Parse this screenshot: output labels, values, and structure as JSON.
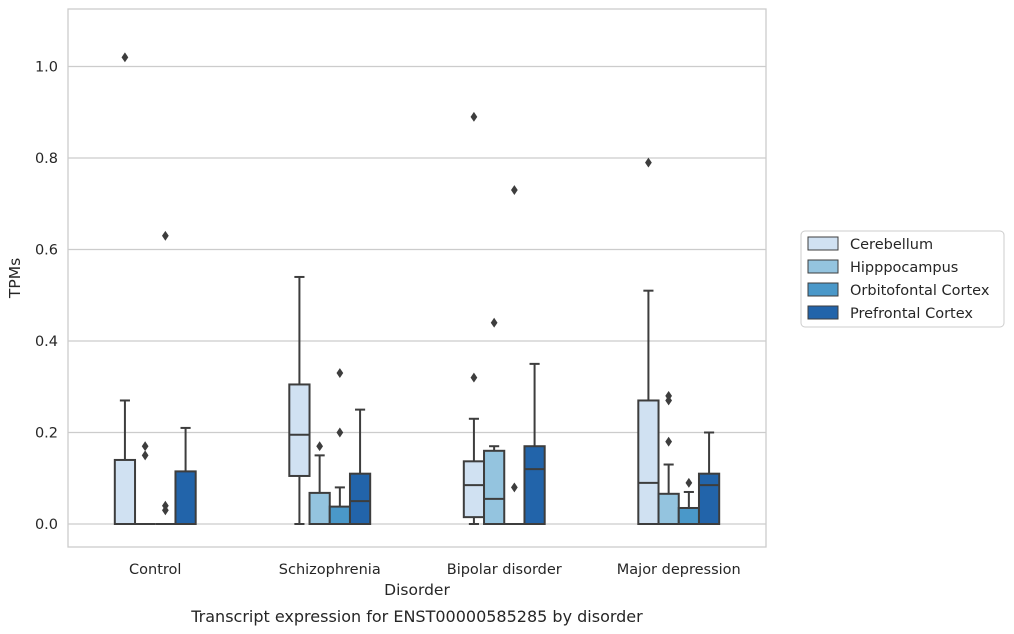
{
  "chart_data": {
    "type": "box",
    "title": "",
    "caption": "Transcript expression for ENST00000585285 by disorder",
    "xlabel": "Disorder",
    "ylabel": "TPMs",
    "ylim": [
      -0.05,
      1.13
    ],
    "yticks": [
      0.0,
      0.2,
      0.4,
      0.6,
      0.8,
      1.0
    ],
    "ytick_labels": [
      "0.0",
      "0.2",
      "0.4",
      "0.6",
      "0.8",
      "1.0"
    ],
    "grid": "horizontal",
    "legend_position": "right",
    "categories": [
      "Control",
      "Schizophrenia",
      "Bipolar disorder",
      "Major depression"
    ],
    "series": [
      {
        "name": "Cerebellum",
        "color": "#d0e1f2",
        "boxes": [
          {
            "min": 0.0,
            "q1": 0.0,
            "median": 0.0,
            "q3": 0.14,
            "max": 0.27,
            "outliers": [
              1.02
            ]
          },
          {
            "min": 0.0,
            "q1": 0.105,
            "median": 0.195,
            "q3": 0.305,
            "max": 0.54,
            "outliers": []
          },
          {
            "min": 0.0,
            "q1": 0.015,
            "median": 0.085,
            "q3": 0.137,
            "max": 0.23,
            "outliers": [
              0.32,
              0.89
            ]
          },
          {
            "min": 0.0,
            "q1": 0.0,
            "median": 0.09,
            "q3": 0.27,
            "max": 0.51,
            "outliers": [
              0.79
            ]
          }
        ]
      },
      {
        "name": "Hipppocampus",
        "color": "#94c4df",
        "boxes": [
          {
            "min": 0.0,
            "q1": 0.0,
            "median": 0.0,
            "q3": 0.0,
            "max": 0.0,
            "outliers": [
              0.15,
              0.17
            ]
          },
          {
            "min": 0.0,
            "q1": 0.0,
            "median": 0.0,
            "q3": 0.068,
            "max": 0.15,
            "outliers": [
              0.17
            ]
          },
          {
            "min": 0.0,
            "q1": 0.0,
            "median": 0.055,
            "q3": 0.16,
            "max": 0.17,
            "outliers": [
              0.44
            ]
          },
          {
            "min": 0.0,
            "q1": 0.0,
            "median": 0.0,
            "q3": 0.066,
            "max": 0.13,
            "outliers": [
              0.18,
              0.27,
              0.28
            ]
          }
        ]
      },
      {
        "name": "Orbitofontal Cortex",
        "color": "#4a98c9",
        "boxes": [
          {
            "min": 0.0,
            "q1": 0.0,
            "median": 0.0,
            "q3": 0.0,
            "max": 0.0,
            "outliers": [
              0.03,
              0.04,
              0.63
            ]
          },
          {
            "min": 0.0,
            "q1": 0.0,
            "median": 0.0,
            "q3": 0.038,
            "max": 0.08,
            "outliers": [
              0.2,
              0.33
            ]
          },
          {
            "min": 0.0,
            "q1": 0.0,
            "median": 0.0,
            "q3": 0.0,
            "max": 0.0,
            "outliers": [
              0.08,
              0.73
            ]
          },
          {
            "min": 0.0,
            "q1": 0.0,
            "median": 0.0,
            "q3": 0.035,
            "max": 0.07,
            "outliers": [
              0.09
            ]
          }
        ]
      },
      {
        "name": "Prefrontal Cortex",
        "color": "#2264aa",
        "boxes": [
          {
            "min": 0.0,
            "q1": 0.0,
            "median": 0.0,
            "q3": 0.115,
            "max": 0.21,
            "outliers": []
          },
          {
            "min": 0.0,
            "q1": 0.0,
            "median": 0.05,
            "q3": 0.11,
            "max": 0.25,
            "outliers": []
          },
          {
            "min": 0.0,
            "q1": 0.0,
            "median": 0.12,
            "q3": 0.17,
            "max": 0.35,
            "outliers": []
          },
          {
            "min": 0.0,
            "q1": 0.0,
            "median": 0.085,
            "q3": 0.11,
            "max": 0.2,
            "outliers": []
          }
        ]
      }
    ]
  }
}
